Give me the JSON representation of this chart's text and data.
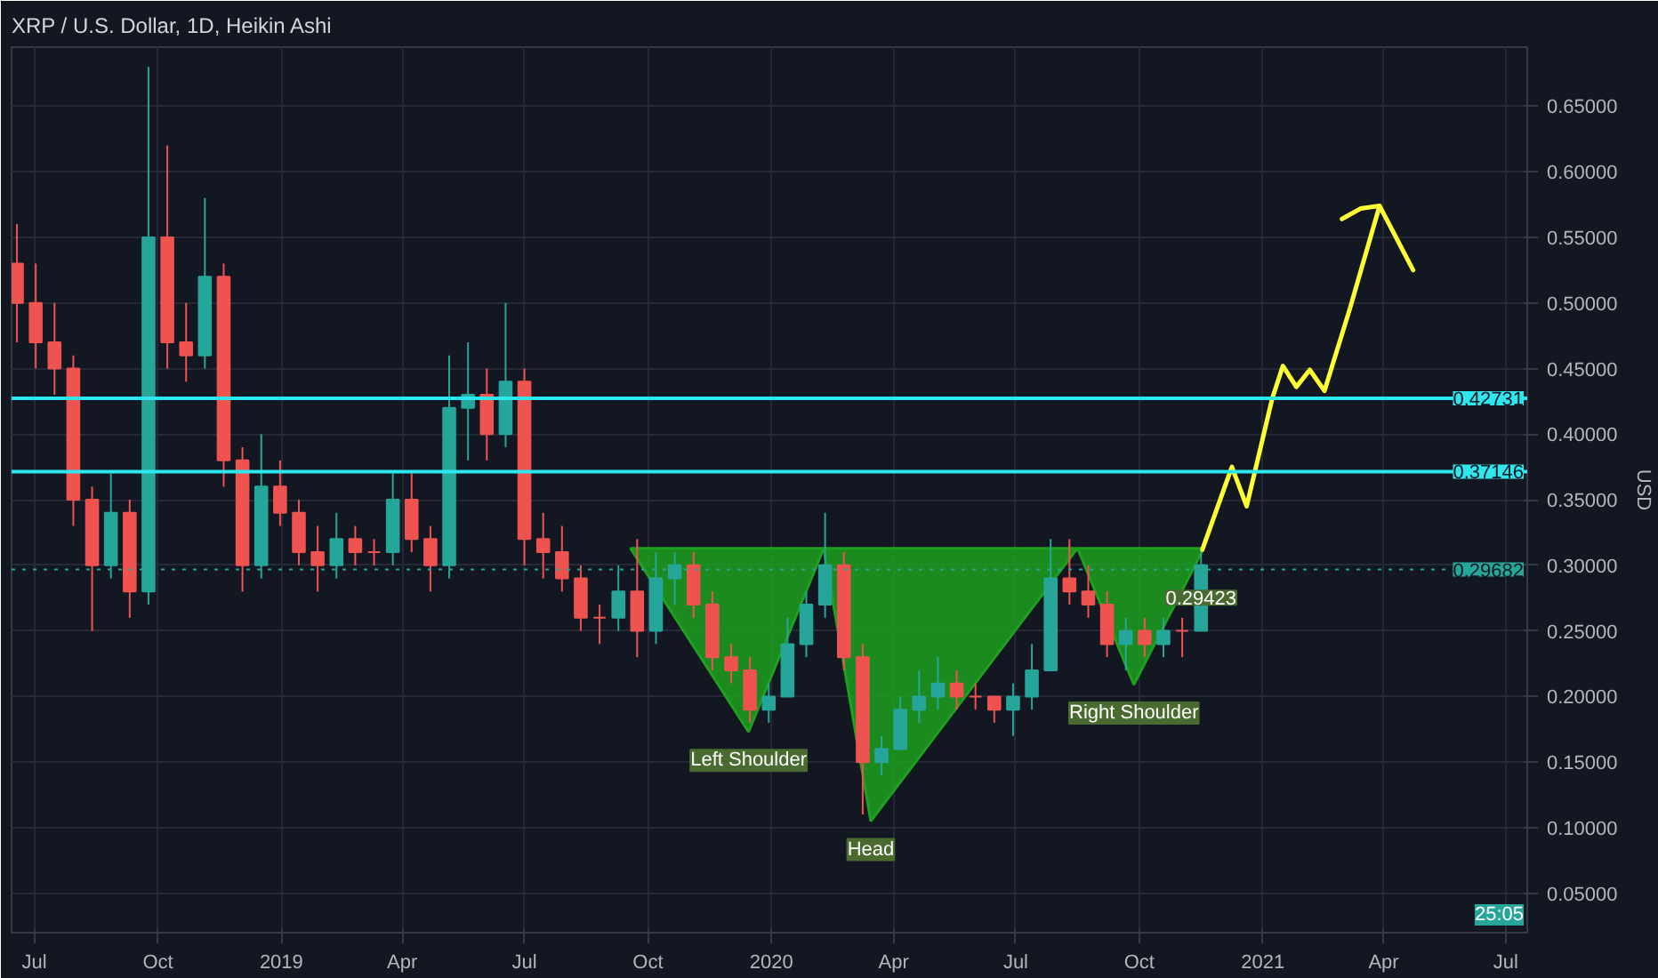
{
  "chart_data": {
    "type": "candlestick",
    "title": "XRP / U.S. Dollar, 1D, Heikin Ashi",
    "ylabel": "USD",
    "x": [
      "2018-06-18",
      "2018-07-02",
      "2018-07-16",
      "2018-07-30",
      "2018-08-13",
      "2018-08-27",
      "2018-09-10",
      "2018-09-24",
      "2018-10-08",
      "2018-10-22",
      "2018-11-05",
      "2018-11-19",
      "2018-12-03",
      "2018-12-17",
      "2018-12-31",
      "2019-01-14",
      "2019-01-28",
      "2019-02-11",
      "2019-02-25",
      "2019-03-11",
      "2019-03-25",
      "2019-04-08",
      "2019-04-22",
      "2019-05-06",
      "2019-05-20",
      "2019-06-03",
      "2019-06-17",
      "2019-07-01",
      "2019-07-15",
      "2019-07-29",
      "2019-08-12",
      "2019-08-26",
      "2019-09-09",
      "2019-09-23",
      "2019-10-07",
      "2019-10-21",
      "2019-11-04",
      "2019-11-18",
      "2019-12-02",
      "2019-12-16",
      "2019-12-30",
      "2020-01-13",
      "2020-01-27",
      "2020-02-10",
      "2020-02-24",
      "2020-03-09",
      "2020-03-23",
      "2020-04-06",
      "2020-04-20",
      "2020-05-04",
      "2020-05-18",
      "2020-06-01",
      "2020-06-15",
      "2020-06-29",
      "2020-07-13",
      "2020-07-27",
      "2020-08-10",
      "2020-08-24",
      "2020-09-07",
      "2020-09-21",
      "2020-10-05",
      "2020-10-19",
      "2020-11-02",
      "2020-11-16"
    ],
    "ohlc": [
      [
        0.53,
        0.56,
        0.47,
        0.5
      ],
      [
        0.5,
        0.53,
        0.45,
        0.47
      ],
      [
        0.47,
        0.5,
        0.43,
        0.45
      ],
      [
        0.45,
        0.46,
        0.33,
        0.35
      ],
      [
        0.35,
        0.36,
        0.25,
        0.3
      ],
      [
        0.3,
        0.37,
        0.29,
        0.34
      ],
      [
        0.34,
        0.35,
        0.26,
        0.28
      ],
      [
        0.28,
        0.68,
        0.27,
        0.55
      ],
      [
        0.55,
        0.62,
        0.45,
        0.47
      ],
      [
        0.47,
        0.5,
        0.44,
        0.46
      ],
      [
        0.46,
        0.58,
        0.45,
        0.52
      ],
      [
        0.52,
        0.53,
        0.36,
        0.38
      ],
      [
        0.38,
        0.39,
        0.28,
        0.3
      ],
      [
        0.3,
        0.4,
        0.29,
        0.36
      ],
      [
        0.36,
        0.38,
        0.33,
        0.34
      ],
      [
        0.34,
        0.35,
        0.3,
        0.31
      ],
      [
        0.31,
        0.33,
        0.28,
        0.3
      ],
      [
        0.3,
        0.34,
        0.29,
        0.32
      ],
      [
        0.32,
        0.33,
        0.3,
        0.31
      ],
      [
        0.31,
        0.32,
        0.3,
        0.31
      ],
      [
        0.31,
        0.37,
        0.3,
        0.35
      ],
      [
        0.35,
        0.37,
        0.31,
        0.32
      ],
      [
        0.32,
        0.33,
        0.28,
        0.3
      ],
      [
        0.3,
        0.46,
        0.29,
        0.42
      ],
      [
        0.42,
        0.47,
        0.38,
        0.43
      ],
      [
        0.43,
        0.45,
        0.38,
        0.4
      ],
      [
        0.4,
        0.5,
        0.39,
        0.44
      ],
      [
        0.44,
        0.45,
        0.3,
        0.32
      ],
      [
        0.32,
        0.34,
        0.29,
        0.31
      ],
      [
        0.31,
        0.33,
        0.28,
        0.29
      ],
      [
        0.29,
        0.3,
        0.25,
        0.26
      ],
      [
        0.26,
        0.27,
        0.24,
        0.26
      ],
      [
        0.26,
        0.3,
        0.25,
        0.28
      ],
      [
        0.28,
        0.32,
        0.23,
        0.25
      ],
      [
        0.25,
        0.31,
        0.24,
        0.29
      ],
      [
        0.29,
        0.31,
        0.27,
        0.3
      ],
      [
        0.3,
        0.31,
        0.26,
        0.27
      ],
      [
        0.27,
        0.28,
        0.22,
        0.23
      ],
      [
        0.23,
        0.24,
        0.21,
        0.22
      ],
      [
        0.22,
        0.23,
        0.18,
        0.19
      ],
      [
        0.19,
        0.21,
        0.18,
        0.2
      ],
      [
        0.2,
        0.26,
        0.2,
        0.24
      ],
      [
        0.24,
        0.28,
        0.23,
        0.27
      ],
      [
        0.27,
        0.34,
        0.26,
        0.3
      ],
      [
        0.3,
        0.31,
        0.22,
        0.23
      ],
      [
        0.23,
        0.24,
        0.11,
        0.15
      ],
      [
        0.15,
        0.17,
        0.14,
        0.16
      ],
      [
        0.16,
        0.2,
        0.16,
        0.19
      ],
      [
        0.19,
        0.22,
        0.18,
        0.2
      ],
      [
        0.2,
        0.23,
        0.19,
        0.21
      ],
      [
        0.21,
        0.22,
        0.19,
        0.2
      ],
      [
        0.2,
        0.21,
        0.19,
        0.2
      ],
      [
        0.2,
        0.2,
        0.18,
        0.19
      ],
      [
        0.19,
        0.21,
        0.17,
        0.2
      ],
      [
        0.2,
        0.24,
        0.19,
        0.22
      ],
      [
        0.22,
        0.32,
        0.22,
        0.29
      ],
      [
        0.29,
        0.32,
        0.27,
        0.28
      ],
      [
        0.28,
        0.3,
        0.26,
        0.27
      ],
      [
        0.27,
        0.28,
        0.23,
        0.24
      ],
      [
        0.24,
        0.26,
        0.22,
        0.25
      ],
      [
        0.25,
        0.26,
        0.23,
        0.24
      ],
      [
        0.24,
        0.26,
        0.23,
        0.25
      ],
      [
        0.25,
        0.26,
        0.23,
        0.25
      ],
      [
        0.25,
        0.31,
        0.25,
        0.3
      ]
    ],
    "colors": [
      "#ef5350",
      "#ef5350",
      "#ef5350",
      "#ef5350",
      "#ef5350",
      "#26a69a",
      "#ef5350",
      "#26a69a",
      "#ef5350",
      "#ef5350",
      "#26a69a",
      "#ef5350",
      "#ef5350",
      "#26a69a",
      "#ef5350",
      "#ef5350",
      "#ef5350",
      "#26a69a",
      "#ef5350",
      "#ef5350",
      "#26a69a",
      "#ef5350",
      "#ef5350",
      "#26a69a",
      "#26a69a",
      "#ef5350",
      "#26a69a",
      "#ef5350",
      "#ef5350",
      "#ef5350",
      "#ef5350",
      "#ef5350",
      "#26a69a",
      "#ef5350",
      "#26a69a",
      "#26a69a",
      "#ef5350",
      "#ef5350",
      "#ef5350",
      "#ef5350",
      "#26a69a",
      "#26a69a",
      "#26a69a",
      "#26a69a",
      "#ef5350",
      "#ef5350",
      "#26a69a",
      "#26a69a",
      "#26a69a",
      "#26a69a",
      "#ef5350",
      "#ef5350",
      "#ef5350",
      "#26a69a",
      "#26a69a",
      "#26a69a",
      "#ef5350",
      "#ef5350",
      "#ef5350",
      "#26a69a",
      "#ef5350",
      "#26a69a",
      "#ef5350",
      "#26a69a"
    ],
    "series": [
      {
        "type": "area",
        "color": "#1fa01f",
        "x": [
          "2019-09-18",
          "2019-12-15",
          "2020-02-09",
          "2019-09-18"
        ],
        "values": [
          0.313,
          0.173,
          0.313,
          0.313
        ]
      },
      {
        "type": "area",
        "color": "#1fa01f",
        "x": [
          "2020-02-09",
          "2020-03-15",
          "2020-08-16",
          "2020-02-09"
        ],
        "values": [
          0.313,
          0.105,
          0.313,
          0.313
        ]
      },
      {
        "type": "area",
        "color": "#1fa01f",
        "x": [
          "2020-08-16",
          "2020-09-27",
          "2020-11-18",
          "2020-08-16"
        ],
        "values": [
          0.313,
          0.209,
          0.313,
          0.313
        ]
      },
      {
        "type": "line",
        "color": "#ffff33",
        "x": [
          "2020-11-17",
          "2020-12-09",
          "2020-12-20",
          "2021-01-08",
          "2021-01-16",
          "2021-01-26",
          "2021-02-05",
          "2021-02-16",
          "2021-03-07",
          "2021-03-29",
          "2021-04-23"
        ],
        "values": [
          0.312,
          0.375,
          0.345,
          0.427,
          0.452,
          0.436,
          0.449,
          0.433,
          0.496,
          0.574,
          0.525
        ]
      },
      {
        "type": "line",
        "color": "#ffff33",
        "x": [
          "2021-03-01",
          "2021-03-15",
          "2021-03-29"
        ],
        "values": [
          0.564,
          0.572,
          0.574
        ]
      }
    ],
    "ref_lines": [
      {
        "axis": "y",
        "value": 0.42731,
        "label": "0.42731",
        "color": "#2ee6ee",
        "line_style": "solid"
      },
      {
        "axis": "y",
        "value": 0.37146,
        "label": "0.37146",
        "color": "#2ee6ee",
        "line_style": "solid"
      },
      {
        "axis": "y",
        "value": 0.29682,
        "label": "0.29682",
        "color": "#26a69a",
        "line_style": "dotted"
      }
    ],
    "annotations": [
      {
        "text": "Left Shoulder",
        "x": "2019-12-15",
        "y": 0.173
      },
      {
        "text": "Head",
        "x": "2020-03-15",
        "y": 0.105
      },
      {
        "text": "Right Shoulder",
        "x": "2020-09-27",
        "y": 0.209
      },
      {
        "text": "0.29423",
        "x": "2020-11-16",
        "y": 0.29423
      },
      "25:05"
    ],
    "xlim": [
      "2018-06-14",
      "2021-07-17"
    ],
    "xticks": [
      {
        "value": "2018-07-01",
        "label": "Jul"
      },
      {
        "value": "2018-10-01",
        "label": "Oct"
      },
      {
        "value": "2019-01-01",
        "label": "2019"
      },
      {
        "value": "2019-04-01",
        "label": "Apr"
      },
      {
        "value": "2019-07-01",
        "label": "Jul"
      },
      {
        "value": "2019-10-01",
        "label": "Oct"
      },
      {
        "value": "2020-01-01",
        "label": "2020"
      },
      {
        "value": "2020-04-01",
        "label": "Apr"
      },
      {
        "value": "2020-07-01",
        "label": "Jul"
      },
      {
        "value": "2020-10-01",
        "label": "Oct"
      },
      {
        "value": "2021-01-01",
        "label": "2021"
      },
      {
        "value": "2021-04-01",
        "label": "Apr"
      },
      {
        "value": "2021-07-01",
        "label": "Jul"
      }
    ],
    "ylim": [
      0.02,
      0.695
    ],
    "yticks": [
      {
        "value": 0.05,
        "label": "0.05000"
      },
      {
        "value": 0.1,
        "label": "0.10000"
      },
      {
        "value": 0.15,
        "label": "0.15000"
      },
      {
        "value": 0.2,
        "label": "0.20000"
      },
      {
        "value": 0.25,
        "label": "0.25000"
      },
      {
        "value": 0.3,
        "label": "0.30000"
      },
      {
        "value": 0.35,
        "label": "0.35000"
      },
      {
        "value": 0.4,
        "label": "0.40000"
      },
      {
        "value": 0.45,
        "label": "0.45000"
      },
      {
        "value": 0.5,
        "label": "0.50000"
      },
      {
        "value": 0.55,
        "label": "0.55000"
      },
      {
        "value": 0.6,
        "label": "0.60000"
      },
      {
        "value": 0.65,
        "label": "0.65000"
      }
    ],
    "grid": true
  }
}
